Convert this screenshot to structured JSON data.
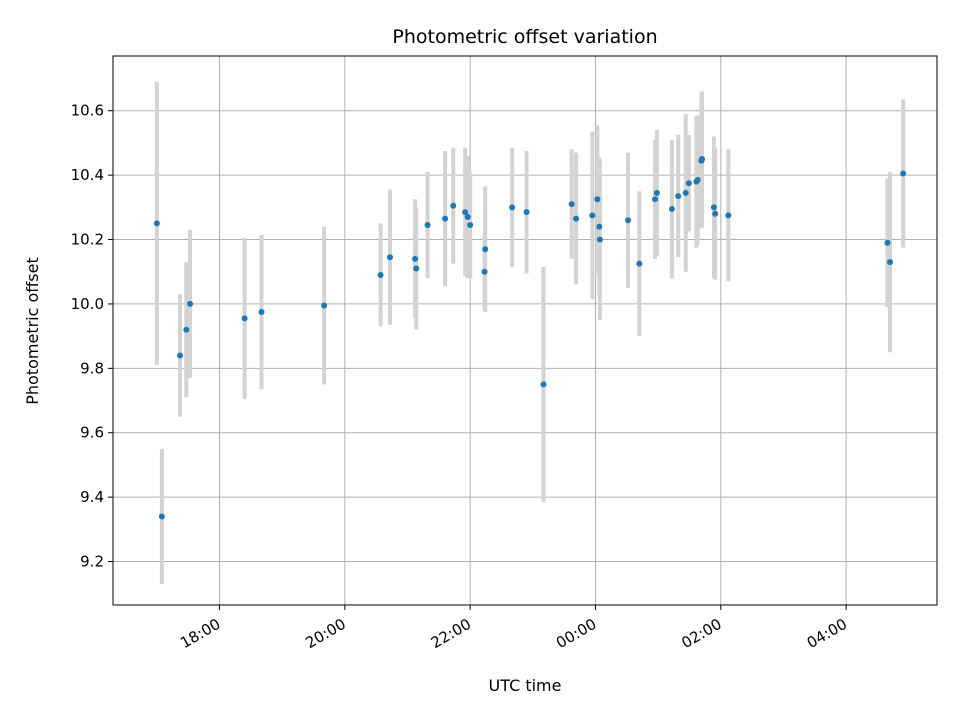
{
  "chart_data": {
    "type": "scatter",
    "title": "Photometric offset variation",
    "xlabel": "UTC time",
    "ylabel": "Photometric offset",
    "x_unit": "hours since 00:00 UTC",
    "xlim": [
      -7.7,
      5.45
    ],
    "ylim": [
      9.065,
      10.77
    ],
    "grid": true,
    "x_ticks": [
      {
        "value": -6,
        "label": "18:00"
      },
      {
        "value": -4,
        "label": "20:00"
      },
      {
        "value": -2,
        "label": "22:00"
      },
      {
        "value": 0,
        "label": "00:00"
      },
      {
        "value": 2,
        "label": "02:00"
      },
      {
        "value": 4,
        "label": "04:00"
      }
    ],
    "y_ticks": [
      {
        "value": 9.2,
        "label": "9.2"
      },
      {
        "value": 9.4,
        "label": "9.4"
      },
      {
        "value": 9.6,
        "label": "9.6"
      },
      {
        "value": 9.8,
        "label": "9.8"
      },
      {
        "value": 10.0,
        "label": "10.0"
      },
      {
        "value": 10.2,
        "label": "10.2"
      },
      {
        "value": 10.4,
        "label": "10.4"
      },
      {
        "value": 10.6,
        "label": "10.6"
      }
    ],
    "colors": {
      "point": "#1f77b4",
      "errorbar": "#d3d3d3",
      "grid": "#b0b0b0"
    },
    "points": [
      {
        "x": -7.0,
        "y": 10.25,
        "err": 0.44
      },
      {
        "x": -6.92,
        "y": 9.34,
        "err": 0.21
      },
      {
        "x": -6.63,
        "y": 9.84,
        "err": 0.19
      },
      {
        "x": -6.53,
        "y": 9.92,
        "err": 0.21
      },
      {
        "x": -6.47,
        "y": 10.0,
        "err": 0.23
      },
      {
        "x": -5.6,
        "y": 9.955,
        "err": 0.25
      },
      {
        "x": -5.33,
        "y": 9.975,
        "err": 0.24
      },
      {
        "x": -4.33,
        "y": 9.995,
        "err": 0.245
      },
      {
        "x": -3.43,
        "y": 10.09,
        "err": 0.16
      },
      {
        "x": -3.28,
        "y": 10.145,
        "err": 0.21
      },
      {
        "x": -2.88,
        "y": 10.14,
        "err": 0.185
      },
      {
        "x": -2.86,
        "y": 10.11,
        "err": 0.19
      },
      {
        "x": -2.68,
        "y": 10.245,
        "err": 0.165
      },
      {
        "x": -2.4,
        "y": 10.265,
        "err": 0.21
      },
      {
        "x": -2.27,
        "y": 10.305,
        "err": 0.18
      },
      {
        "x": -2.08,
        "y": 10.285,
        "err": 0.2
      },
      {
        "x": -2.04,
        "y": 10.27,
        "err": 0.19
      },
      {
        "x": -2.0,
        "y": 10.245,
        "err": 0.165
      },
      {
        "x": -1.76,
        "y": 10.17,
        "err": 0.195
      },
      {
        "x": -1.77,
        "y": 10.1,
        "err": 0.12
      },
      {
        "x": -1.33,
        "y": 10.3,
        "err": 0.185
      },
      {
        "x": -1.1,
        "y": 10.285,
        "err": 0.19
      },
      {
        "x": -0.83,
        "y": 9.75,
        "err": 0.365
      },
      {
        "x": -0.38,
        "y": 10.31,
        "err": 0.17
      },
      {
        "x": -0.31,
        "y": 10.265,
        "err": 0.205
      },
      {
        "x": -0.05,
        "y": 10.275,
        "err": 0.26
      },
      {
        "x": 0.03,
        "y": 10.325,
        "err": 0.23
      },
      {
        "x": 0.06,
        "y": 10.24,
        "err": 0.215
      },
      {
        "x": 0.07,
        "y": 10.2,
        "err": 0.25
      },
      {
        "x": 0.52,
        "y": 10.26,
        "err": 0.21
      },
      {
        "x": 0.7,
        "y": 10.125,
        "err": 0.225
      },
      {
        "x": 0.95,
        "y": 10.325,
        "err": 0.185
      },
      {
        "x": 0.98,
        "y": 10.345,
        "err": 0.195
      },
      {
        "x": 1.22,
        "y": 10.295,
        "err": 0.215
      },
      {
        "x": 1.32,
        "y": 10.335,
        "err": 0.19
      },
      {
        "x": 1.44,
        "y": 10.345,
        "err": 0.245
      },
      {
        "x": 1.49,
        "y": 10.375,
        "err": 0.15
      },
      {
        "x": 1.61,
        "y": 10.38,
        "err": 0.205
      },
      {
        "x": 1.63,
        "y": 10.385,
        "err": 0.2
      },
      {
        "x": 1.69,
        "y": 10.445,
        "err": 0.21
      },
      {
        "x": 1.7,
        "y": 10.45,
        "err": 0.21
      },
      {
        "x": 1.89,
        "y": 10.3,
        "err": 0.22
      },
      {
        "x": 1.91,
        "y": 10.28,
        "err": 0.205
      },
      {
        "x": 2.12,
        "y": 10.275,
        "err": 0.205
      },
      {
        "x": 4.66,
        "y": 10.19,
        "err": 0.2
      },
      {
        "x": 4.7,
        "y": 10.13,
        "err": 0.28
      },
      {
        "x": 4.91,
        "y": 10.405,
        "err": 0.23
      }
    ]
  }
}
